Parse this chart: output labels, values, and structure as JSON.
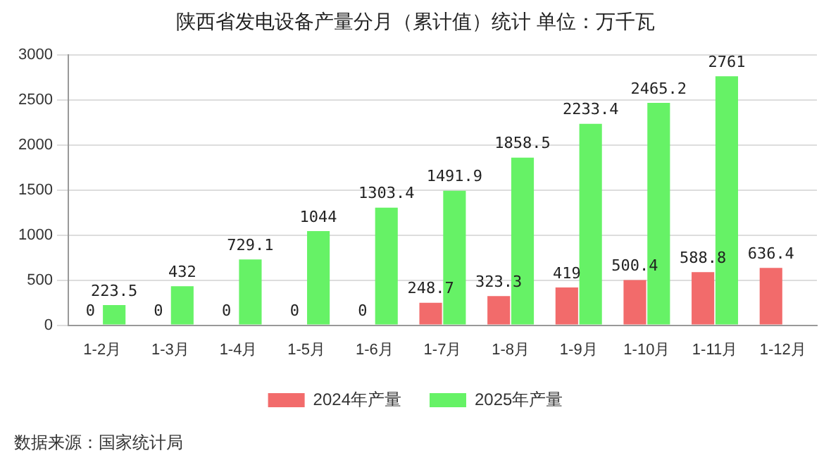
{
  "chart_data": {
    "type": "bar",
    "title": "陕西省发电设备产量分月（累计值）统计 单位：万千瓦",
    "categories": [
      "1-2月",
      "1-3月",
      "1-4月",
      "1-5月",
      "1-6月",
      "1-7月",
      "1-8月",
      "1-9月",
      "1-10月",
      "1-11月",
      "1-12月"
    ],
    "series": [
      {
        "name": "2024年产量",
        "color": "#f26b6b",
        "values": [
          0,
          0,
          0,
          0,
          0,
          248.7,
          323.3,
          419,
          500.4,
          588.8,
          636.4
        ]
      },
      {
        "name": "2025年产量",
        "color": "#66f266",
        "values": [
          223.5,
          432,
          729.1,
          1044,
          1303.4,
          1491.9,
          1858.5,
          2233.4,
          2465.2,
          2761,
          null
        ]
      }
    ],
    "ylim": [
      0,
      3000
    ],
    "yticks": [
      0,
      500,
      1000,
      1500,
      2000,
      2500,
      3000
    ],
    "grid": "y",
    "legend": "bottom",
    "data_labels": true,
    "annotations": [
      "数据来源：国家统计局"
    ]
  }
}
